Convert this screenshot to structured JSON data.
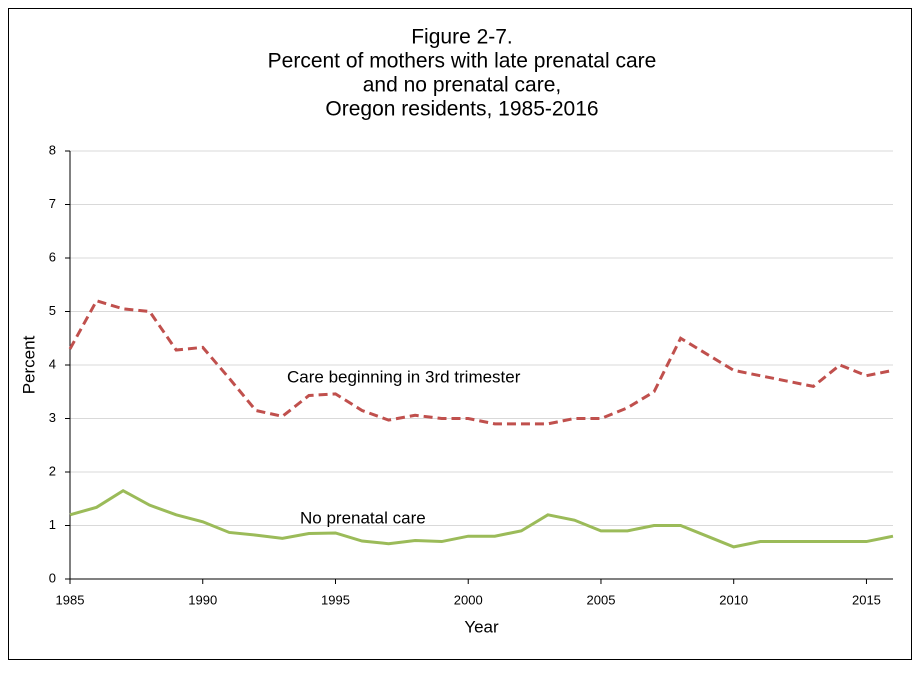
{
  "chart_data": {
    "type": "line",
    "title": [
      "Figure 2-7.",
      "Percent of mothers with late prenatal care",
      "and no prenatal care,",
      "Oregon residents, 1985-2016"
    ],
    "x_label": "Year",
    "y_label": "Percent",
    "x": [
      1985,
      1986,
      1987,
      1988,
      1989,
      1990,
      1991,
      1992,
      1993,
      1994,
      1995,
      1996,
      1997,
      1998,
      1999,
      2000,
      2001,
      2002,
      2003,
      2004,
      2005,
      2006,
      2007,
      2008,
      2009,
      2010,
      2011,
      2012,
      2013,
      2014,
      2015,
      2016
    ],
    "series": [
      {
        "name": "Care beginning in 3rd trimester",
        "color": "#c0504d",
        "line_style": "dashed",
        "values": [
          4.3,
          5.2,
          5.05,
          5.0,
          4.28,
          4.33,
          3.75,
          3.15,
          3.04,
          3.43,
          3.46,
          3.15,
          2.97,
          3.06,
          3.0,
          3.0,
          2.9,
          2.9,
          2.9,
          3.0,
          3.0,
          3.2,
          3.5,
          4.5,
          4.2,
          3.9,
          3.8,
          3.7,
          3.6,
          4.0,
          3.8,
          3.9
        ]
      },
      {
        "name": "No prenatal care",
        "color": "#9bbb59",
        "line_style": "solid",
        "values": [
          1.2,
          1.34,
          1.65,
          1.38,
          1.2,
          1.07,
          0.87,
          0.82,
          0.76,
          0.85,
          0.86,
          0.71,
          0.66,
          0.72,
          0.7,
          0.8,
          0.8,
          0.9,
          1.2,
          1.1,
          0.9,
          0.9,
          1.0,
          1.0,
          0.8,
          0.6,
          0.7,
          0.7,
          0.7,
          0.7,
          0.7,
          0.8
        ]
      }
    ],
    "xlim": [
      1985,
      2016
    ],
    "xticks": [
      1985,
      1990,
      1995,
      2000,
      2005,
      2010,
      2015
    ],
    "ylim": [
      0,
      8
    ],
    "yticks": [
      0,
      1,
      2,
      3,
      4,
      5,
      6,
      7,
      8
    ],
    "grid": true
  }
}
